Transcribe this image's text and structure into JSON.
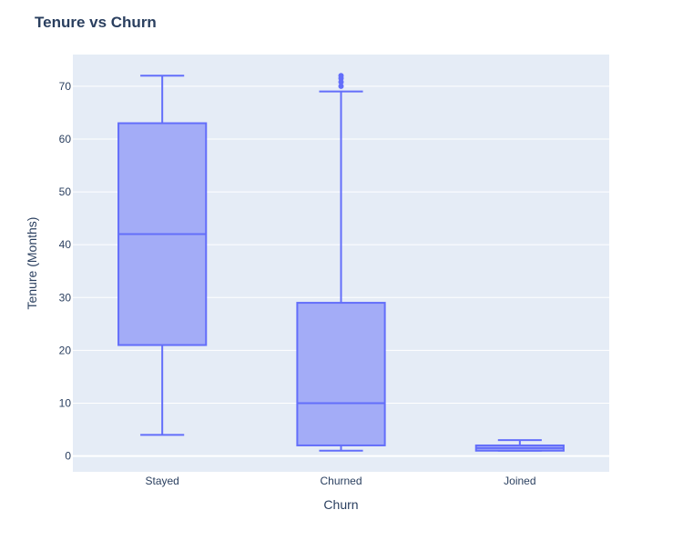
{
  "chart_data": {
    "type": "box",
    "title": "Tenure vs Churn",
    "xlabel": "Churn",
    "ylabel": "Tenure (Months)",
    "ylim": [
      -3,
      76
    ],
    "yticks": [
      0,
      10,
      20,
      30,
      40,
      50,
      60,
      70
    ],
    "grid": true,
    "categories": [
      "Stayed",
      "Churned",
      "Joined"
    ],
    "boxes": [
      {
        "category": "Stayed",
        "min": 4,
        "q1": 21,
        "median": 42,
        "q3": 63,
        "max": 72,
        "outliers": []
      },
      {
        "category": "Churned",
        "min": 1,
        "q1": 2,
        "median": 10,
        "q3": 29,
        "max": 69,
        "outliers": [
          70,
          70.8,
          71.5,
          72
        ]
      },
      {
        "category": "Joined",
        "min": 1,
        "q1": 1,
        "median": 1.5,
        "q3": 2,
        "max": 3,
        "outliers": []
      }
    ],
    "colors": {
      "box_fill": "#a3acf7",
      "box_line": "#636efa",
      "plot_bg": "#e5ecf6",
      "grid": "#ffffff",
      "text": "#2a3f5f"
    }
  }
}
